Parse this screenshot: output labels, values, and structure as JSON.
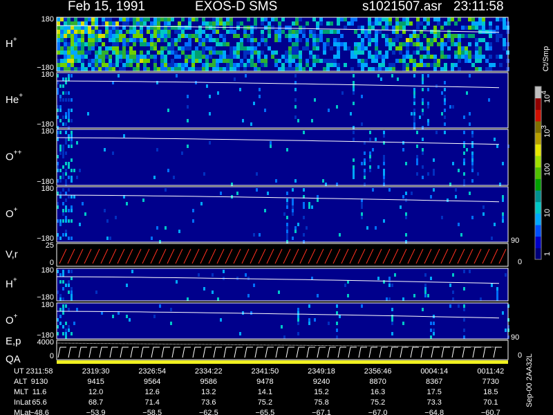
{
  "header": {
    "date": "Feb 15, 1991",
    "instrument": "EXOS-D SMS",
    "file": "s1021507.asr",
    "time": "23:11:58"
  },
  "panels": [
    {
      "label": "H",
      "sup": "+",
      "top": "180",
      "bottom": "−180"
    },
    {
      "label": "He",
      "sup": "+",
      "top": "180",
      "bottom": "−180"
    },
    {
      "label": "O",
      "sup": "++",
      "top": "180",
      "bottom": "−180"
    },
    {
      "label": "O",
      "sup": "+",
      "top": "180",
      "bottom": "−180"
    },
    {
      "label": "V,r",
      "top": "25",
      "bottom": "0",
      "right_top": "90",
      "right_bottom": "0"
    },
    {
      "label": "H",
      "sup": "+",
      "top": "180",
      "bottom": "−180"
    },
    {
      "label": "O",
      "sup": "+",
      "top": "180",
      "bottom": "−180"
    },
    {
      "label": "E,p",
      "label2": "QA",
      "top": "4000",
      "bottom": "0",
      "right_top": "90",
      "right_bottom": "0"
    }
  ],
  "colorbar": {
    "title": "Ct/Smp",
    "labels": [
      {
        "text": "10",
        "sup": "4"
      },
      {
        "text": "10",
        "sup": "3"
      },
      {
        "text": "100"
      },
      {
        "text": "10"
      },
      {
        "text": "1"
      }
    ]
  },
  "footer": {
    "rows": [
      {
        "name": "UT",
        "values": [
          "2311:58",
          "2319:30",
          "2326:54",
          "2334:22",
          "2341:50",
          "2349:18",
          "2356:46",
          "0004:14",
          "0011:42"
        ]
      },
      {
        "name": "ALT",
        "values": [
          "9130",
          "9415",
          "9564",
          "9586",
          "9478",
          "9240",
          "8870",
          "8367",
          "7730"
        ]
      },
      {
        "name": "MLT",
        "values": [
          "11.6",
          "12.0",
          "12.6",
          "13.2",
          "14.1",
          "15.2",
          "16.3",
          "17.5",
          "18.5"
        ]
      },
      {
        "name": "InLat",
        "values": [
          "65.6",
          "68.7",
          "71.4",
          "73.6",
          "75.2",
          "75.8",
          "75.2",
          "73.3",
          "70.1"
        ]
      },
      {
        "name": "MLat",
        "values": [
          "−48.6",
          "−53.9",
          "−58.5",
          "−62.5",
          "−65.5",
          "−67.1",
          "−67.0",
          "−64.8",
          "−60.7"
        ]
      }
    ],
    "stamp": "Sep-00 2AA32L"
  }
}
